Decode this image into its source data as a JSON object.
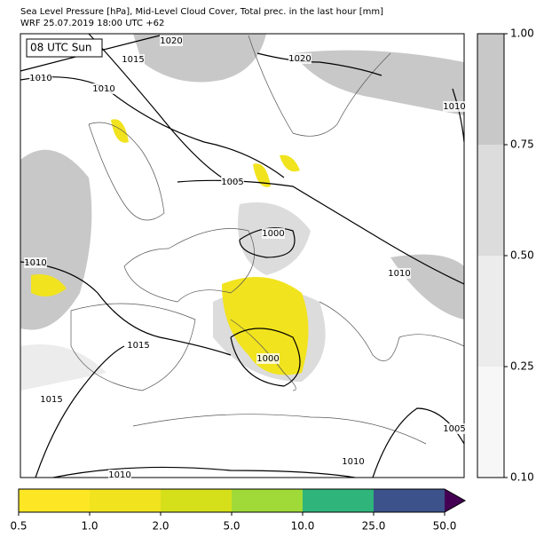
{
  "header": {
    "title_line1": "Sea Level Pressure [hPa], Mid-Level Cloud Cover, Total prec. in the last hour [mm]",
    "title_line2": "WRF 25.07.2019 18:00 UTC +62"
  },
  "map": {
    "time_label": "08 UTC Sun",
    "isobar_labels": [
      "1020",
      "1015",
      "1010",
      "1010",
      "1020",
      "1010",
      "1005",
      "1000",
      "1010",
      "1010",
      "1015",
      "1000",
      "1015",
      "1005",
      "1010",
      "1010"
    ]
  },
  "cloud_colorbar": {
    "ticks": [
      "0.10",
      "0.25",
      "0.50",
      "0.75",
      "1.00"
    ],
    "colors": [
      "#f7f7f7",
      "#ececec",
      "#dcdcdc",
      "#c8c8c8"
    ]
  },
  "precip_colorbar": {
    "ticks": [
      "0.5",
      "1.0",
      "2.0",
      "5.0",
      "10.0",
      "25.0",
      "50.0"
    ],
    "colors": [
      "#fde725",
      "#f1e31e",
      "#d5e01a",
      "#a0da39",
      "#2fb47c",
      "#3b528b"
    ],
    "extend_color": "#440154"
  }
}
